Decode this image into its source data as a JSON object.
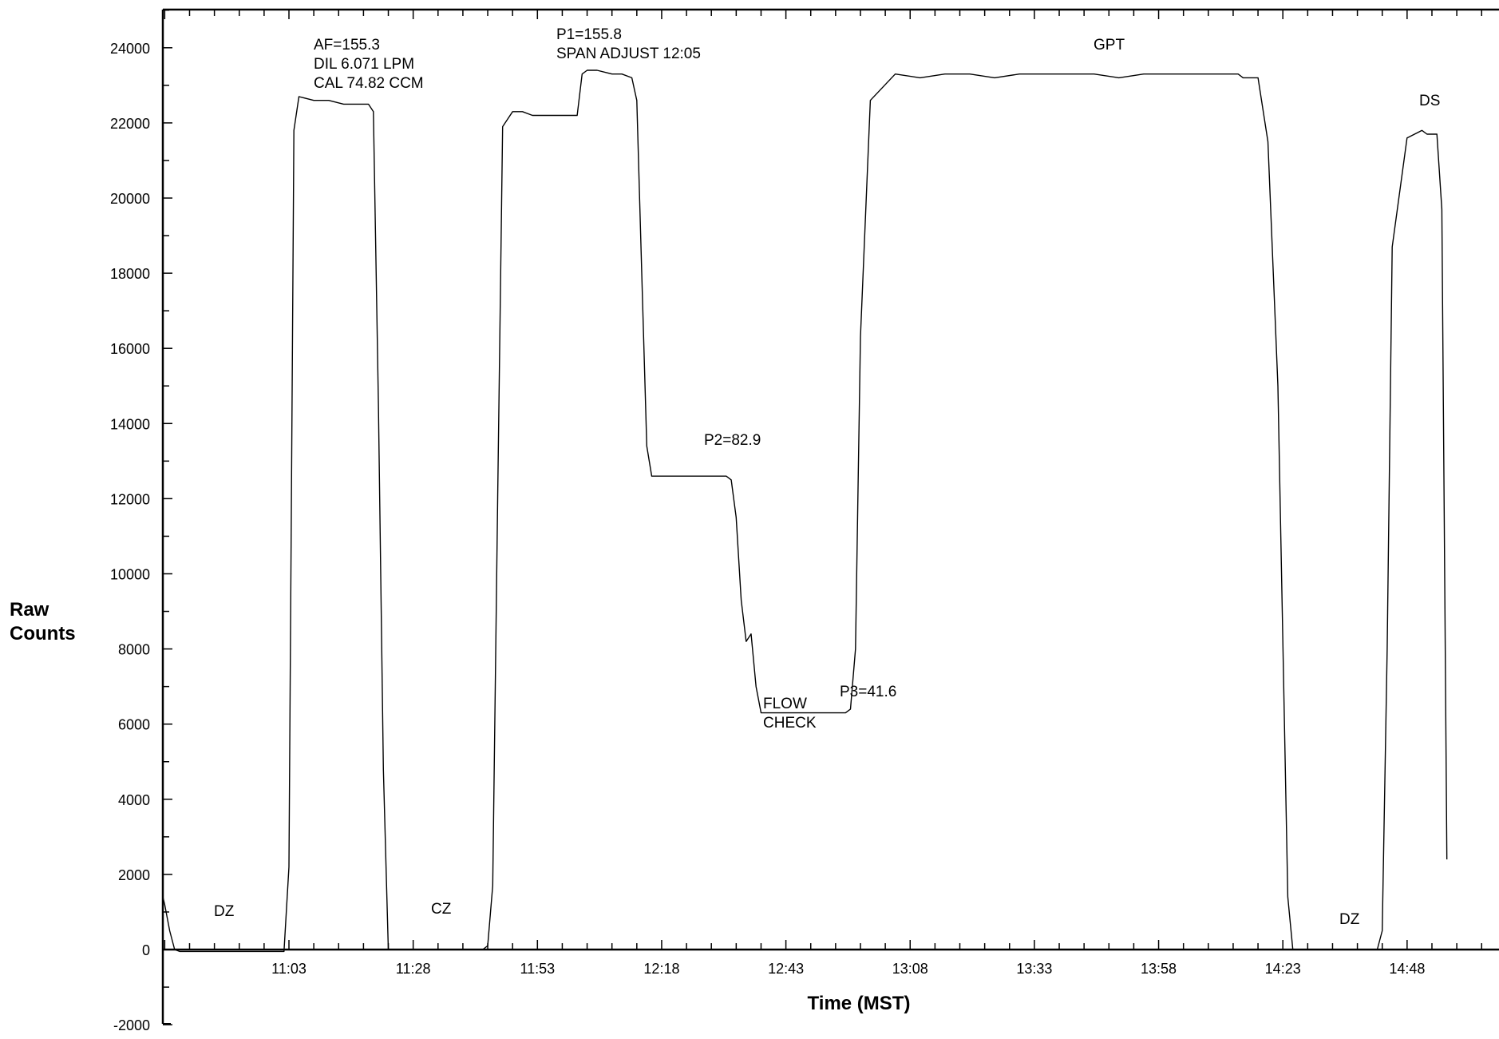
{
  "chart_data": {
    "type": "line",
    "title": "",
    "xlabel": "Time (MST)",
    "ylabel_lines": [
      "Raw",
      "Counts"
    ],
    "x_ticks": [
      "11:03",
      "11:28",
      "11:53",
      "12:18",
      "12:43",
      "13:08",
      "13:33",
      "13:58",
      "14:23",
      "14:48"
    ],
    "y_ticks": [
      "-2000",
      "0",
      "2000",
      "4000",
      "6000",
      "8000",
      "10000",
      "12000",
      "14000",
      "16000",
      "18000",
      "20000",
      "22000",
      "24000"
    ],
    "ylim": [
      -2000,
      25000
    ],
    "xlim": [
      "10:37",
      "15:03"
    ],
    "grid": false,
    "series": [
      {
        "x": [
          "10:37",
          "10:38",
          "10:39",
          "10:40",
          "10:41",
          "10:42",
          "10:45",
          "10:50",
          "10:55",
          "11:00",
          "11:01",
          "11:02",
          "11:03",
          "11:04",
          "11:05",
          "11:08",
          "11:11",
          "11:14",
          "11:17",
          "11:19",
          "11:20",
          "11:21",
          "11:22",
          "11:23",
          "11:24",
          "11:30",
          "11:35",
          "11:40",
          "11:41",
          "11:42",
          "11:43",
          "11:44",
          "11:45",
          "11:46",
          "11:48",
          "11:50",
          "11:52",
          "11:55",
          "11:58",
          "12:01",
          "12:02",
          "12:03",
          "12:05",
          "12:08",
          "12:10",
          "12:12",
          "12:13",
          "12:14",
          "12:15",
          "12:16",
          "12:17",
          "12:19",
          "12:22",
          "12:25",
          "12:28",
          "12:31",
          "12:32",
          "12:33",
          "12:34",
          "12:35",
          "12:36",
          "12:37",
          "12:38",
          "12:40",
          "12:45",
          "12:50",
          "12:53",
          "12:54",
          "12:55",
          "12:56",
          "12:57",
          "12:58",
          "13:00",
          "13:05",
          "13:10",
          "13:15",
          "13:20",
          "13:25",
          "13:30",
          "13:35",
          "13:40",
          "13:45",
          "13:50",
          "13:55",
          "14:00",
          "14:05",
          "14:10",
          "14:13",
          "14:14",
          "14:15",
          "14:16",
          "14:17",
          "14:18",
          "14:20",
          "14:22",
          "14:24",
          "14:25",
          "14:26",
          "14:27",
          "14:28",
          "14:30",
          "14:33",
          "14:35",
          "14:38",
          "14:40",
          "14:42",
          "14:43",
          "14:44",
          "14:45",
          "14:48",
          "14:51",
          "14:52",
          "14:53",
          "14:54",
          "14:55",
          "14:56"
        ],
        "values": [
          1400,
          1200,
          500,
          0,
          -50,
          -50,
          -50,
          -50,
          -50,
          -50,
          -50,
          -50,
          2200,
          21800,
          22700,
          22600,
          22600,
          22500,
          22500,
          22500,
          22300,
          14500,
          4800,
          0,
          0,
          0,
          0,
          0,
          0,
          0,
          100,
          1700,
          12000,
          21900,
          22300,
          22300,
          22200,
          22200,
          22200,
          22200,
          23300,
          23400,
          23400,
          23300,
          23300,
          23200,
          22600,
          18000,
          13400,
          12600,
          12600,
          12600,
          12600,
          12600,
          12600,
          12600,
          12500,
          11500,
          9300,
          8200,
          8400,
          7000,
          6300,
          6300,
          6300,
          6300,
          6300,
          6300,
          6300,
          6400,
          8000,
          16300,
          22600,
          23300,
          23200,
          23300,
          23300,
          23200,
          23300,
          23300,
          23300,
          23300,
          23200,
          23300,
          23300,
          23300,
          23300,
          23300,
          23300,
          23200,
          23200,
          23200,
          23200,
          21500,
          15000,
          1400,
          0,
          0,
          0,
          0,
          0,
          0,
          0,
          0,
          0,
          0,
          500,
          8000,
          18700,
          21600,
          21800,
          21700,
          21700,
          21700,
          19700,
          2400
        ]
      }
    ],
    "annotations": [
      {
        "lines": [
          "DZ"
        ]
      },
      {
        "lines": [
          "AF=155.3",
          "DIL 6.071 LPM",
          "CAL 74.82 CCM"
        ]
      },
      {
        "lines": [
          "CZ"
        ]
      },
      {
        "lines": [
          "P1=155.8",
          "SPAN ADJUST 12:05"
        ]
      },
      {
        "lines": [
          "P2=82.9"
        ]
      },
      {
        "lines": [
          "FLOW",
          "CHECK"
        ]
      },
      {
        "lines": [
          "P3=41.6"
        ]
      },
      {
        "lines": [
          "GPT"
        ]
      },
      {
        "lines": [
          "DS"
        ]
      },
      {
        "lines": [
          "DZ"
        ]
      }
    ]
  }
}
